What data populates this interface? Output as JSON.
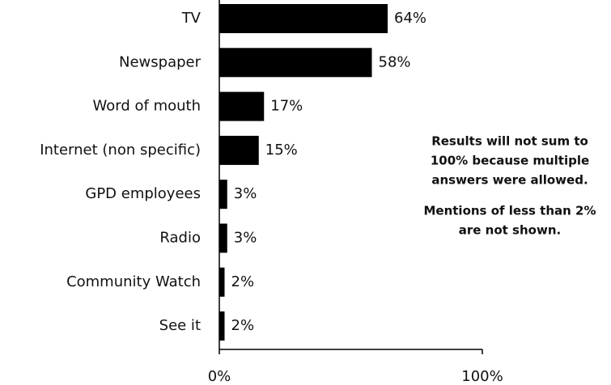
{
  "chart_data": {
    "type": "bar",
    "orientation": "horizontal",
    "categories": [
      "TV",
      "Newspaper",
      "Word of mouth",
      "Internet (non specific)",
      "GPD employees",
      "Radio",
      "Community Watch",
      "See it"
    ],
    "values": [
      64,
      58,
      17,
      15,
      3,
      3,
      2,
      2
    ],
    "value_labels": [
      "64%",
      "58%",
      "17%",
      "15%",
      "3%",
      "3%",
      "2%",
      "2%"
    ],
    "color": "#000000",
    "xlim": [
      0,
      100
    ],
    "xticks": [
      {
        "value": 0,
        "label": "0%"
      },
      {
        "value": 100,
        "label": "100%"
      }
    ],
    "annotations": [
      [
        "Results will not sum to",
        "100% because multiple",
        "answers were allowed."
      ],
      [
        "Mentions of less than 2%",
        "are not shown."
      ]
    ]
  }
}
